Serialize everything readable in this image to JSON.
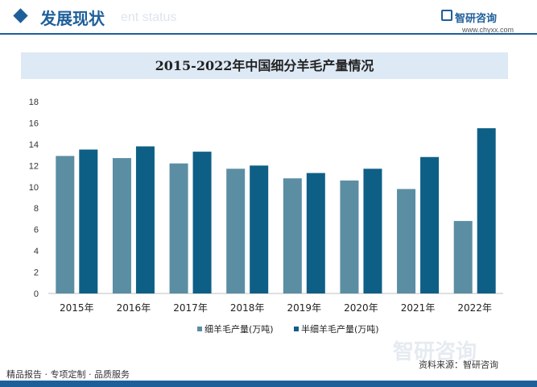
{
  "header": {
    "title": "发展现状",
    "watermark": "ent status"
  },
  "brand": {
    "name": "智研咨询",
    "url": "www.chyxx.com"
  },
  "footer": {
    "left": "精品报告 · 专项定制 · 品质服务",
    "right": "资料来源：智研咨询",
    "watermark": "智研咨询"
  },
  "colors": {
    "series1": "#5b8ea3",
    "series2": "#0e5f86",
    "accent": "#1f5f99"
  },
  "chart_data": {
    "type": "bar",
    "title": "2015-2022年中国细分羊毛产量情况",
    "categories": [
      "2015年",
      "2016年",
      "2017年",
      "2018年",
      "2019年",
      "2020年",
      "2021年",
      "2022年"
    ],
    "series": [
      {
        "name": "细羊毛产量(万吨)",
        "values": [
          12.9,
          12.7,
          12.2,
          11.7,
          10.8,
          10.6,
          9.8,
          6.8
        ]
      },
      {
        "name": "半细羊毛产量(万吨)",
        "values": [
          13.5,
          13.8,
          13.3,
          12.0,
          11.3,
          11.7,
          12.8,
          15.5
        ]
      }
    ],
    "ylim": [
      0,
      18
    ],
    "yticks": [
      0,
      2,
      4,
      6,
      8,
      10,
      12,
      14,
      16,
      18
    ],
    "legend_position": "bottom",
    "grid": false
  }
}
